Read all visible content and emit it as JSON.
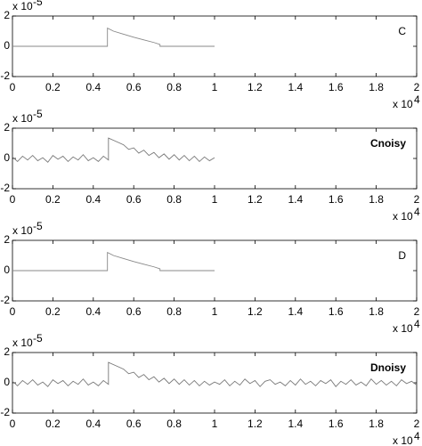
{
  "chart_data": [
    {
      "type": "line",
      "title": "C",
      "title_bold": false,
      "x": [
        0,
        0.47,
        0.47,
        0.5,
        0.55,
        0.6,
        0.65,
        0.7,
        0.73,
        0.73,
        1.0
      ],
      "series": [
        {
          "color": "#888888",
          "values": [
            0,
            0,
            1.2,
            1.0,
            0.8,
            0.6,
            0.42,
            0.25,
            0.12,
            0,
            0
          ]
        }
      ],
      "xlim": [
        0,
        2
      ],
      "xticks": [
        0,
        0.2,
        0.4,
        0.6,
        0.8,
        1,
        1.2,
        1.4,
        1.6,
        1.8,
        2
      ],
      "ylim": [
        -2,
        2
      ],
      "yticks": [
        -2,
        0,
        2
      ],
      "x_multiplier": {
        "base": "x 10",
        "exponent": "4"
      },
      "y_multiplier": {
        "base": "x 10",
        "exponent": "-5"
      }
    },
    {
      "type": "line",
      "title": "Cnoisy",
      "title_bold": true,
      "x": [
        0,
        0.025,
        0.05,
        0.075,
        0.1,
        0.125,
        0.15,
        0.175,
        0.2,
        0.225,
        0.25,
        0.275,
        0.3,
        0.325,
        0.35,
        0.375,
        0.4,
        0.425,
        0.45,
        0.475,
        0.475,
        0.5,
        0.525,
        0.55,
        0.575,
        0.6,
        0.625,
        0.65,
        0.675,
        0.7,
        0.725,
        0.75,
        0.775,
        0.8,
        0.825,
        0.85,
        0.875,
        0.9,
        0.925,
        0.95,
        0.975,
        1.0
      ],
      "series": [
        {
          "color": "#777777",
          "values": [
            0.1,
            -0.2,
            0.15,
            -0.1,
            0.2,
            -0.15,
            0.05,
            -0.25,
            0.2,
            -0.05,
            0.15,
            -0.2,
            0.1,
            -0.1,
            0.25,
            -0.15,
            0.05,
            -0.2,
            0.15,
            -0.1,
            1.35,
            1.2,
            1.05,
            0.9,
            0.6,
            0.7,
            0.35,
            0.55,
            0.2,
            0.4,
            0.05,
            0.3,
            -0.05,
            0.25,
            -0.1,
            0.2,
            -0.15,
            0.15,
            -0.2,
            0.1,
            -0.15,
            0.05
          ]
        }
      ],
      "xlim": [
        0,
        2
      ],
      "xticks": [
        0,
        0.2,
        0.4,
        0.6,
        0.8,
        1,
        1.2,
        1.4,
        1.6,
        1.8,
        2
      ],
      "ylim": [
        -2,
        2
      ],
      "yticks": [
        -2,
        0,
        2
      ],
      "x_multiplier": {
        "base": "x 10",
        "exponent": "4"
      },
      "y_multiplier": {
        "base": "x 10",
        "exponent": "-5"
      }
    },
    {
      "type": "line",
      "title": "D",
      "title_bold": false,
      "x": [
        0,
        0.47,
        0.47,
        0.5,
        0.55,
        0.6,
        0.65,
        0.7,
        0.73,
        0.73,
        1.0
      ],
      "series": [
        {
          "color": "#888888",
          "values": [
            0,
            0,
            1.2,
            1.0,
            0.8,
            0.6,
            0.42,
            0.25,
            0.12,
            0,
            0
          ]
        }
      ],
      "xlim": [
        0,
        2
      ],
      "xticks": [
        0,
        0.2,
        0.4,
        0.6,
        0.8,
        1,
        1.2,
        1.4,
        1.6,
        1.8,
        2
      ],
      "ylim": [
        -2,
        2
      ],
      "yticks": [
        -2,
        0,
        2
      ],
      "x_multiplier": {
        "base": "x 10",
        "exponent": "4"
      },
      "y_multiplier": {
        "base": "x 10",
        "exponent": "-5"
      }
    },
    {
      "type": "line",
      "title": "Dnoisy",
      "title_bold": true,
      "x": [
        0,
        0.025,
        0.05,
        0.075,
        0.1,
        0.125,
        0.15,
        0.175,
        0.2,
        0.225,
        0.25,
        0.275,
        0.3,
        0.325,
        0.35,
        0.375,
        0.4,
        0.425,
        0.45,
        0.475,
        0.475,
        0.5,
        0.525,
        0.55,
        0.575,
        0.6,
        0.625,
        0.65,
        0.675,
        0.7,
        0.725,
        0.75,
        0.775,
        0.8,
        0.825,
        0.85,
        0.875,
        0.9,
        0.925,
        0.95,
        0.975,
        1.0,
        1.025,
        1.05,
        1.075,
        1.1,
        1.125,
        1.15,
        1.175,
        1.2,
        1.225,
        1.25,
        1.275,
        1.3,
        1.325,
        1.35,
        1.375,
        1.4,
        1.425,
        1.45,
        1.475,
        1.5,
        1.525,
        1.55,
        1.575,
        1.6,
        1.625,
        1.65,
        1.675,
        1.7,
        1.725,
        1.75,
        1.775,
        1.8,
        1.825,
        1.85,
        1.875,
        1.9,
        1.925,
        1.95,
        1.975,
        2.0
      ],
      "series": [
        {
          "color": "#777777",
          "values": [
            0.1,
            -0.2,
            0.15,
            -0.1,
            0.2,
            -0.15,
            0.05,
            -0.25,
            0.2,
            -0.05,
            0.15,
            -0.2,
            0.1,
            -0.1,
            0.25,
            -0.15,
            0.05,
            -0.2,
            0.15,
            -0.1,
            1.35,
            1.2,
            1.05,
            0.9,
            0.6,
            0.7,
            0.35,
            0.55,
            0.2,
            0.4,
            0.05,
            0.3,
            -0.05,
            0.25,
            -0.1,
            0.2,
            -0.15,
            0.15,
            -0.2,
            0.1,
            -0.15,
            0.05,
            -0.1,
            0.2,
            -0.2,
            0.1,
            -0.15,
            0.25,
            -0.05,
            0.15,
            -0.25,
            0.1,
            0.2,
            -0.1,
            0.05,
            -0.2,
            0.15,
            -0.15,
            0.25,
            -0.1,
            0.1,
            -0.2,
            0.15,
            -0.05,
            0.2,
            -0.25,
            0.1,
            -0.1,
            0.2,
            -0.15,
            0.05,
            -0.2,
            0.25,
            -0.1,
            0.15,
            -0.15,
            0.1,
            -0.2,
            0.2,
            -0.05,
            0.1,
            -0.15
          ]
        }
      ],
      "xlim": [
        0,
        2
      ],
      "xticks": [
        0,
        0.2,
        0.4,
        0.6,
        0.8,
        1,
        1.2,
        1.4,
        1.6,
        1.8,
        2
      ],
      "ylim": [
        -2,
        2
      ],
      "yticks": [
        -2,
        0,
        2
      ],
      "x_multiplier": {
        "base": "x 10",
        "exponent": "4"
      },
      "y_multiplier": {
        "base": "x 10",
        "exponent": "-5"
      }
    }
  ]
}
